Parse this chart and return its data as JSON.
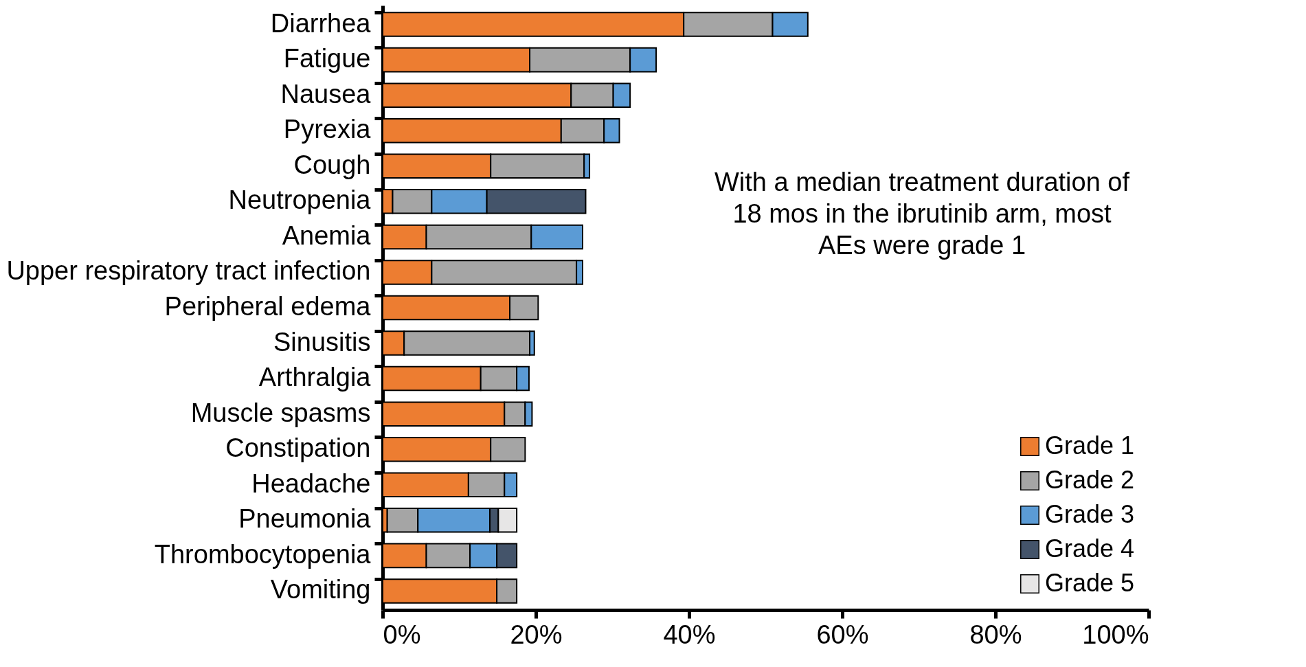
{
  "chart_data": {
    "type": "bar",
    "orientation": "horizontal",
    "stacked": true,
    "categories": [
      "Diarrhea",
      "Fatigue",
      "Nausea",
      "Pyrexia",
      "Cough",
      "Neutropenia",
      "Anemia",
      "Upper respiratory tract infection",
      "Peripheral edema",
      "Sinusitis",
      "Arthralgia",
      "Muscle spasms",
      "Constipation",
      "Headache",
      "Pneumonia",
      "Thrombocytopenia",
      "Vomiting"
    ],
    "series": [
      {
        "name": "Grade 1",
        "color": "#ed7d31",
        "values": [
          39.3,
          19.2,
          24.6,
          23.3,
          14.1,
          1.3,
          5.7,
          6.4,
          16.6,
          2.8,
          12.8,
          15.9,
          14.1,
          11.2,
          0.6,
          5.7,
          14.9
        ]
      },
      {
        "name": "Grade 2",
        "color": "#a5a5a5",
        "values": [
          11.6,
          13.1,
          5.5,
          5.6,
          12.2,
          5.1,
          13.7,
          18.9,
          3.7,
          16.4,
          4.7,
          2.7,
          4.5,
          4.7,
          4.0,
          5.7,
          2.6
        ]
      },
      {
        "name": "Grade 3",
        "color": "#5b9bd5",
        "values": [
          4.6,
          3.4,
          2.2,
          2.0,
          0.7,
          7.2,
          6.7,
          0.8,
          null,
          0.6,
          1.6,
          0.9,
          null,
          1.6,
          9.4,
          3.5,
          null
        ]
      },
      {
        "name": "Grade 4",
        "color": "#44546a",
        "values": [
          null,
          null,
          null,
          null,
          null,
          12.9,
          null,
          null,
          null,
          null,
          null,
          null,
          null,
          null,
          1.1,
          2.6,
          null
        ]
      },
      {
        "name": "Grade 5",
        "color": "#e7e6e6",
        "values": [
          null,
          null,
          null,
          null,
          null,
          null,
          null,
          null,
          null,
          null,
          null,
          null,
          null,
          null,
          2.4,
          null,
          null
        ]
      }
    ],
    "xlim": [
      0,
      100
    ],
    "xticks": [
      {
        "value": 0,
        "label": "0%"
      },
      {
        "value": 20,
        "label": "20%"
      },
      {
        "value": 40,
        "label": "40%"
      },
      {
        "value": 60,
        "label": "60%"
      },
      {
        "value": 80,
        "label": "80%"
      },
      {
        "value": 100,
        "label": "100%"
      }
    ],
    "grid": false,
    "legend": "bottom right",
    "annotations": [
      "With a median treatment duration of 18 mos in the ibrutinib arm, most AEs were grade 1"
    ]
  }
}
